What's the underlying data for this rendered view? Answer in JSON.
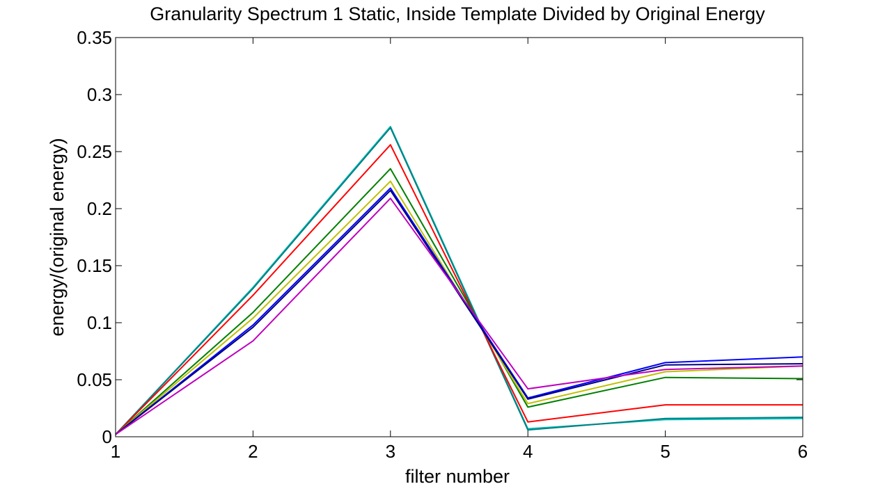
{
  "chart_data": {
    "type": "line",
    "title": "Granularity Spectrum 1 Static, Inside Template Divided by Original Energy",
    "xlabel": "filter number",
    "ylabel": "energy/(original energy)",
    "xlim": [
      1,
      6
    ],
    "ylim": [
      0,
      0.35
    ],
    "x": [
      1,
      2,
      3,
      4,
      5,
      6
    ],
    "xticks": [
      "1",
      "2",
      "3",
      "4",
      "5",
      "6"
    ],
    "yticks": [
      "0",
      "0.05",
      "0.1",
      "0.15",
      "0.2",
      "0.25",
      "0.3",
      "0.35"
    ],
    "grid": false,
    "series": [
      {
        "name": "cyan",
        "color": "#00BFBF",
        "values": [
          0.002,
          0.131,
          0.272,
          0.007,
          0.015,
          0.016
        ]
      },
      {
        "name": "teal",
        "color": "#008080",
        "values": [
          0.002,
          0.13,
          0.271,
          0.006,
          0.016,
          0.017
        ]
      },
      {
        "name": "red",
        "color": "#FF0000",
        "values": [
          0.002,
          0.124,
          0.256,
          0.013,
          0.028,
          0.028
        ]
      },
      {
        "name": "dark green",
        "color": "#007F00",
        "values": [
          0.002,
          0.109,
          0.235,
          0.026,
          0.052,
          0.051
        ]
      },
      {
        "name": "yellow",
        "color": "#BFBF00",
        "values": [
          0.002,
          0.104,
          0.224,
          0.029,
          0.057,
          0.062
        ]
      },
      {
        "name": "blue",
        "color": "#0000FF",
        "values": [
          0.002,
          0.098,
          0.218,
          0.034,
          0.065,
          0.07
        ]
      },
      {
        "name": "navy",
        "color": "#00007F",
        "values": [
          0.002,
          0.096,
          0.216,
          0.033,
          0.063,
          0.064
        ]
      },
      {
        "name": "magenta",
        "color": "#BF00BF",
        "values": [
          0.002,
          0.084,
          0.209,
          0.042,
          0.059,
          0.062
        ]
      }
    ]
  }
}
